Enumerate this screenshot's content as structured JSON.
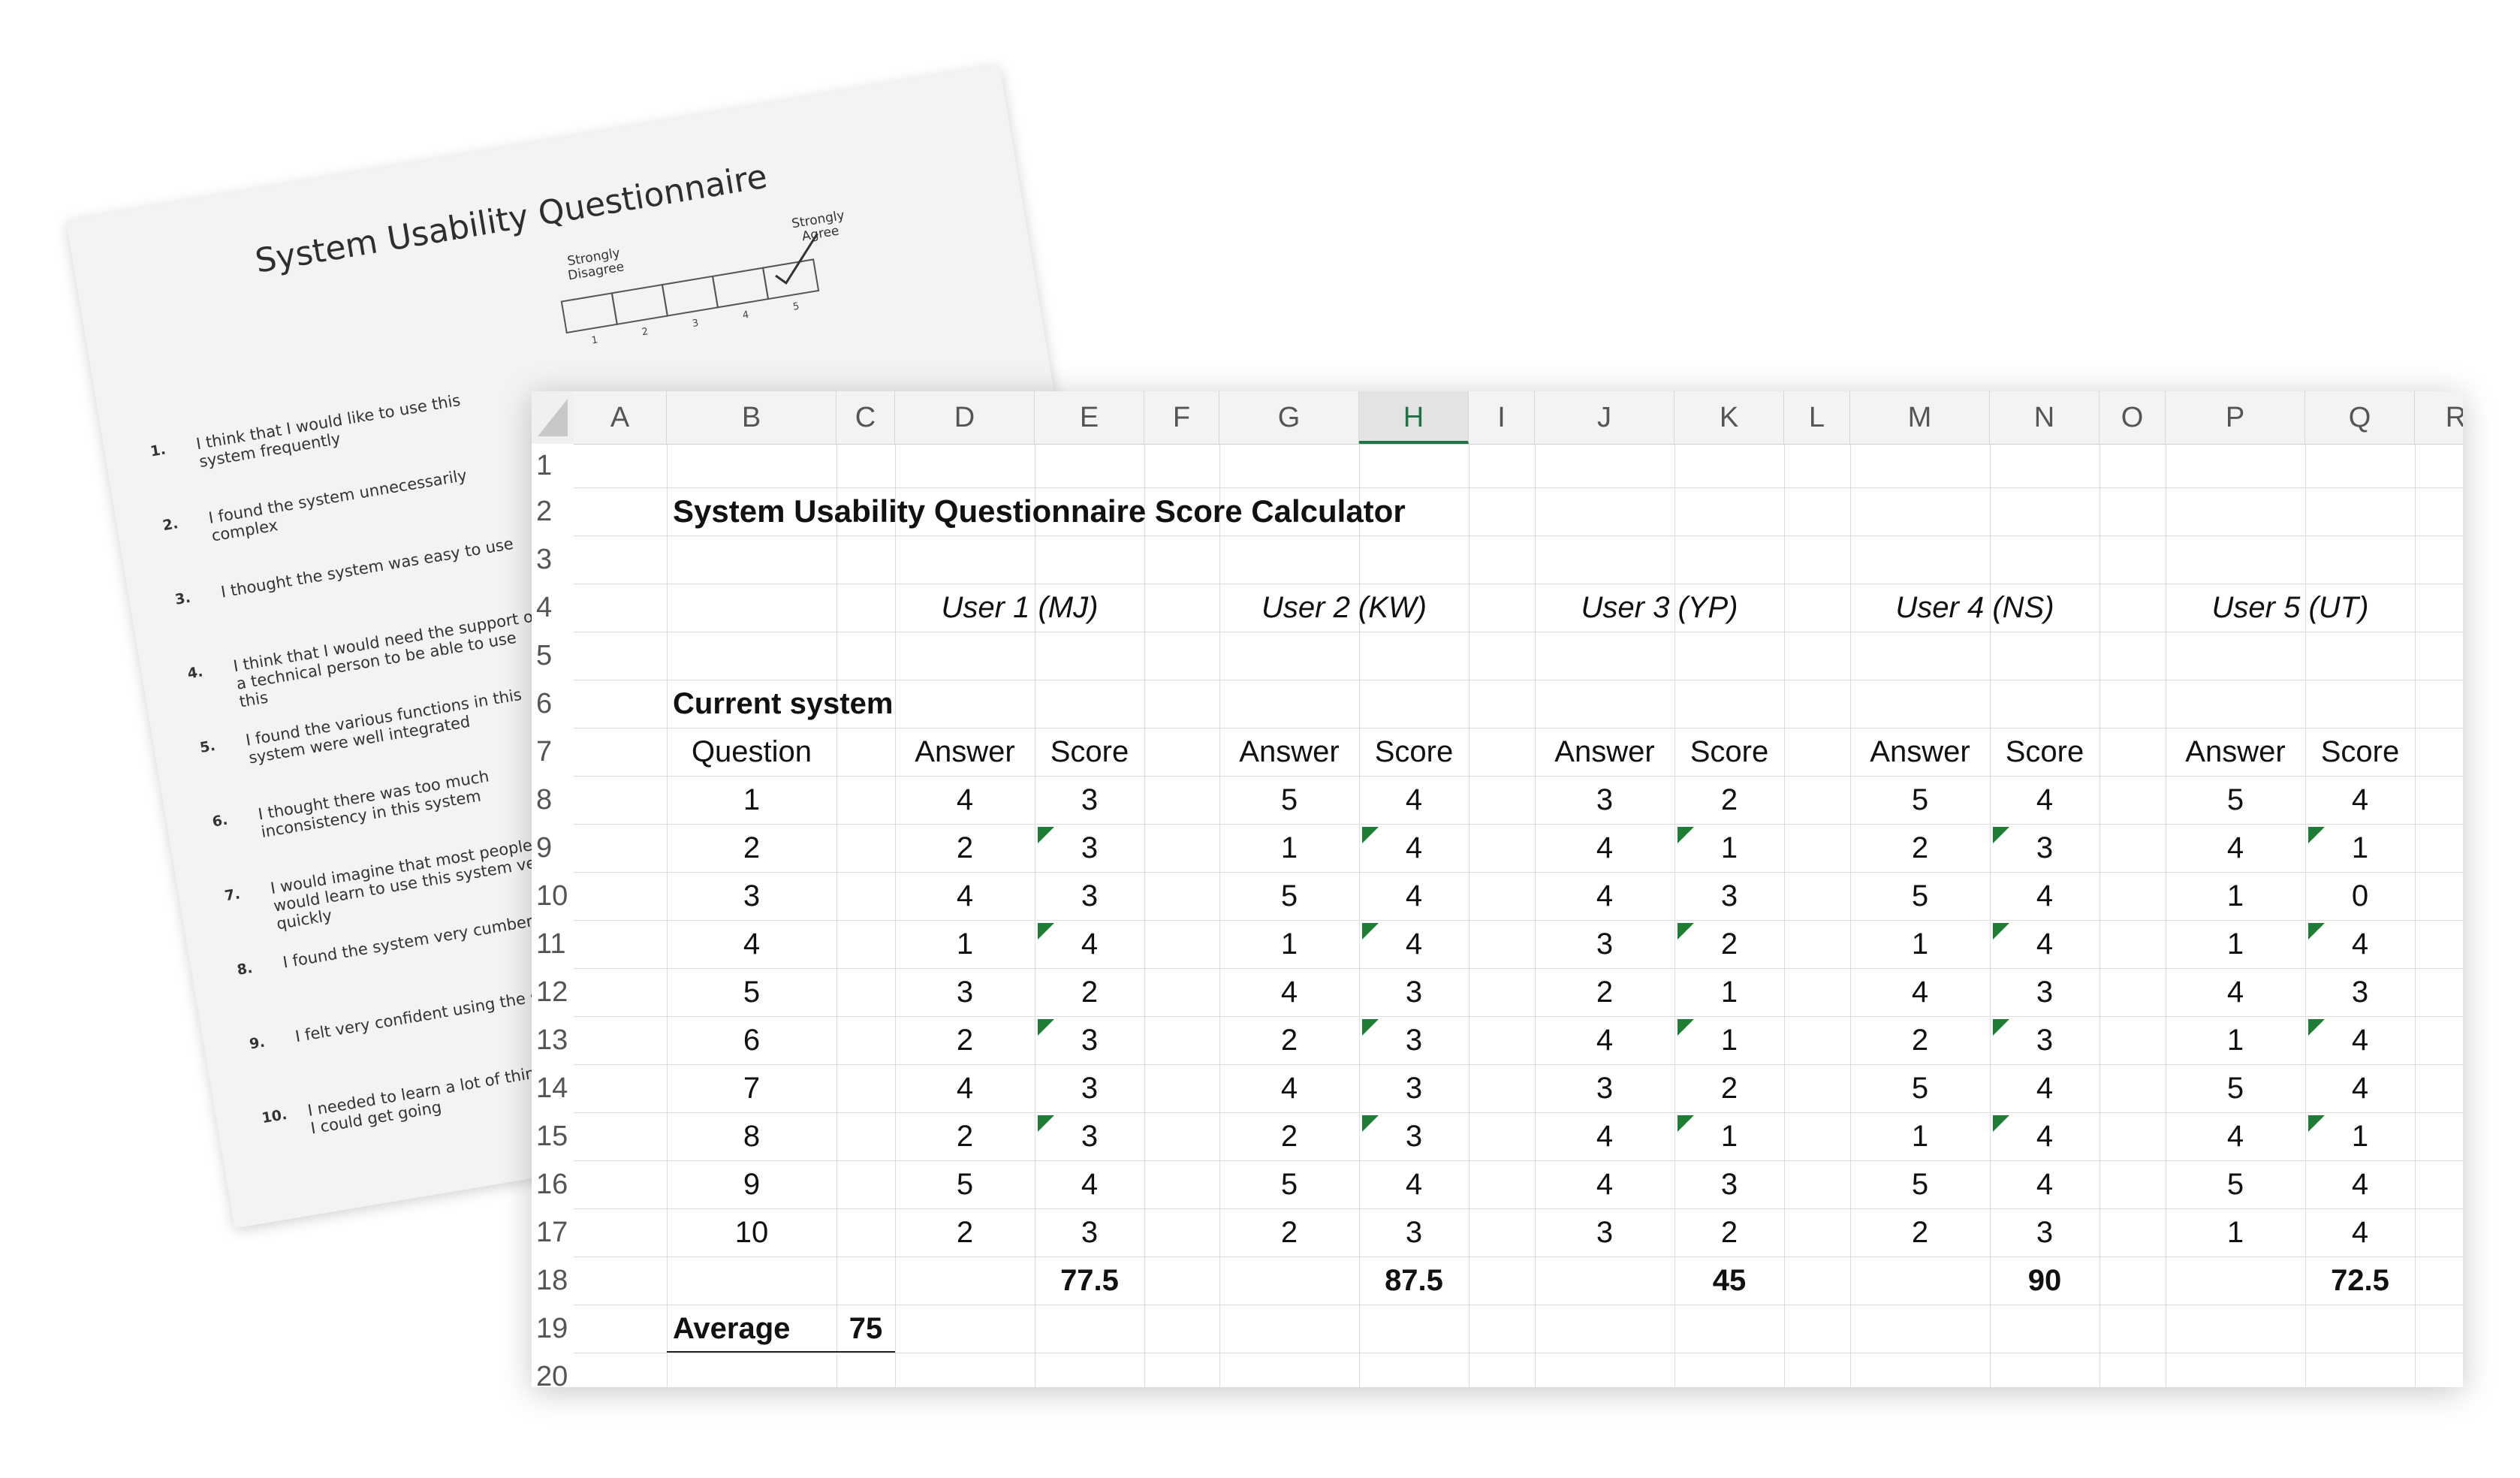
{
  "paper": {
    "title": "System Usability Questionnaire",
    "strongly_disagree": "Strongly Disagree",
    "strongly_agree": "Strongly Agree",
    "scale_numbers": [
      "1",
      "2",
      "3",
      "4",
      "5"
    ],
    "questions": [
      {
        "num": "1.",
        "text": "I think that I would like to use this system frequently"
      },
      {
        "num": "2.",
        "text": "I found the system unnecessarily complex"
      },
      {
        "num": "3.",
        "text": "I thought the system was easy to use"
      },
      {
        "num": "4.",
        "text": "I think that I would need the support of a technical person to be able to use this"
      },
      {
        "num": "5.",
        "text": "I found the various functions in this system were well integrated"
      },
      {
        "num": "6.",
        "text": "I thought there was too much inconsistency in this system"
      },
      {
        "num": "7.",
        "text": "I would imagine that most people would learn to use this system very quickly"
      },
      {
        "num": "8.",
        "text": "I found the system very cumbersome"
      },
      {
        "num": "9.",
        "text": "I felt very confident using the system"
      },
      {
        "num": "10.",
        "text": "I needed to learn a lot of things before I could get going"
      }
    ]
  },
  "sheet": {
    "column_letters": [
      "A",
      "B",
      "C",
      "D",
      "E",
      "F",
      "G",
      "H",
      "I",
      "J",
      "K",
      "L",
      "M",
      "N",
      "O",
      "P",
      "Q",
      "R"
    ],
    "active_column": "H",
    "row_numbers": [
      "1",
      "2",
      "3",
      "4",
      "5",
      "6",
      "7",
      "8",
      "9",
      "10",
      "11",
      "12",
      "13",
      "14",
      "15",
      "16",
      "17",
      "18",
      "19",
      "20"
    ],
    "title": "System Usability Questionnaire Score Calculator",
    "section_label": "Current system",
    "question_header": "Question",
    "answer_header": "Answer",
    "score_header": "Score",
    "average_label": "Average",
    "average_value": "75",
    "questions": [
      "1",
      "2",
      "3",
      "4",
      "5",
      "6",
      "7",
      "8",
      "9",
      "10"
    ],
    "users": [
      {
        "name": "User 1 (MJ)",
        "answers": [
          "4",
          "2",
          "4",
          "1",
          "3",
          "2",
          "4",
          "2",
          "5",
          "2"
        ],
        "scores": [
          "3",
          "3",
          "3",
          "4",
          "2",
          "3",
          "3",
          "3",
          "4",
          "3"
        ],
        "total": "77.5"
      },
      {
        "name": "User 2 (KW)",
        "answers": [
          "5",
          "1",
          "5",
          "1",
          "4",
          "2",
          "4",
          "2",
          "5",
          "2"
        ],
        "scores": [
          "4",
          "4",
          "4",
          "4",
          "3",
          "3",
          "3",
          "3",
          "4",
          "3"
        ],
        "total": "87.5"
      },
      {
        "name": "User 3 (YP)",
        "answers": [
          "3",
          "4",
          "4",
          "3",
          "2",
          "4",
          "3",
          "4",
          "4",
          "3"
        ],
        "scores": [
          "2",
          "1",
          "3",
          "2",
          "1",
          "1",
          "2",
          "1",
          "3",
          "2"
        ],
        "total": "45"
      },
      {
        "name": "User 4 (NS)",
        "answers": [
          "5",
          "2",
          "5",
          "1",
          "4",
          "2",
          "5",
          "1",
          "5",
          "2"
        ],
        "scores": [
          "4",
          "3",
          "4",
          "4",
          "3",
          "3",
          "4",
          "4",
          "4",
          "3"
        ],
        "total": "90"
      },
      {
        "name": "User 5 (UT)",
        "answers": [
          "5",
          "4",
          "1",
          "1",
          "4",
          "1",
          "5",
          "4",
          "5",
          "1"
        ],
        "scores": [
          "4",
          "1",
          "0",
          "4",
          "3",
          "4",
          "4",
          "1",
          "4",
          "4"
        ],
        "total": "72.5"
      }
    ],
    "comment_marker_color": "#1e7d32",
    "accent_color": "#217346"
  }
}
